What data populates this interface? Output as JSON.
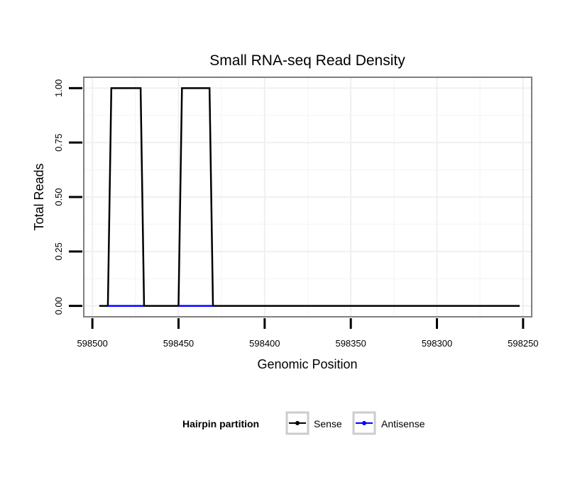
{
  "chart_data": {
    "type": "line",
    "title": "Small RNA-seq Read Density",
    "xlabel": "Genomic Position",
    "ylabel": "Total Reads",
    "xlim": [
      598505,
      598245
    ],
    "x_reversed": true,
    "ylim": [
      -0.05,
      1.05
    ],
    "x_ticks": [
      598500,
      598450,
      598400,
      598350,
      598300,
      598250
    ],
    "x_tick_labels": [
      "598500",
      "598450",
      "598400",
      "598350",
      "598300",
      "598250"
    ],
    "y_ticks": [
      0,
      0.25,
      0.5,
      0.75,
      1.0
    ],
    "y_tick_labels": [
      "0.00",
      "0.25",
      "0.50",
      "0.75",
      "1.00"
    ],
    "grid": true,
    "legend": {
      "title": "Hairpin partition",
      "position": "bottom"
    },
    "series": [
      {
        "name": "Sense",
        "color": "#000000",
        "x": [
          598496,
          598491,
          598489,
          598472,
          598470,
          598450,
          598448,
          598432,
          598430,
          598252
        ],
        "y": [
          0,
          0,
          1,
          1,
          0,
          0,
          1,
          1,
          0,
          0
        ]
      },
      {
        "name": "Antisense",
        "color": "#0000ff",
        "x": [
          598491,
          598470,
          598450,
          598430
        ],
        "y": [
          0,
          0,
          0,
          0
        ],
        "segments": [
          [
            0,
            1
          ],
          [
            2,
            3
          ]
        ]
      }
    ]
  }
}
